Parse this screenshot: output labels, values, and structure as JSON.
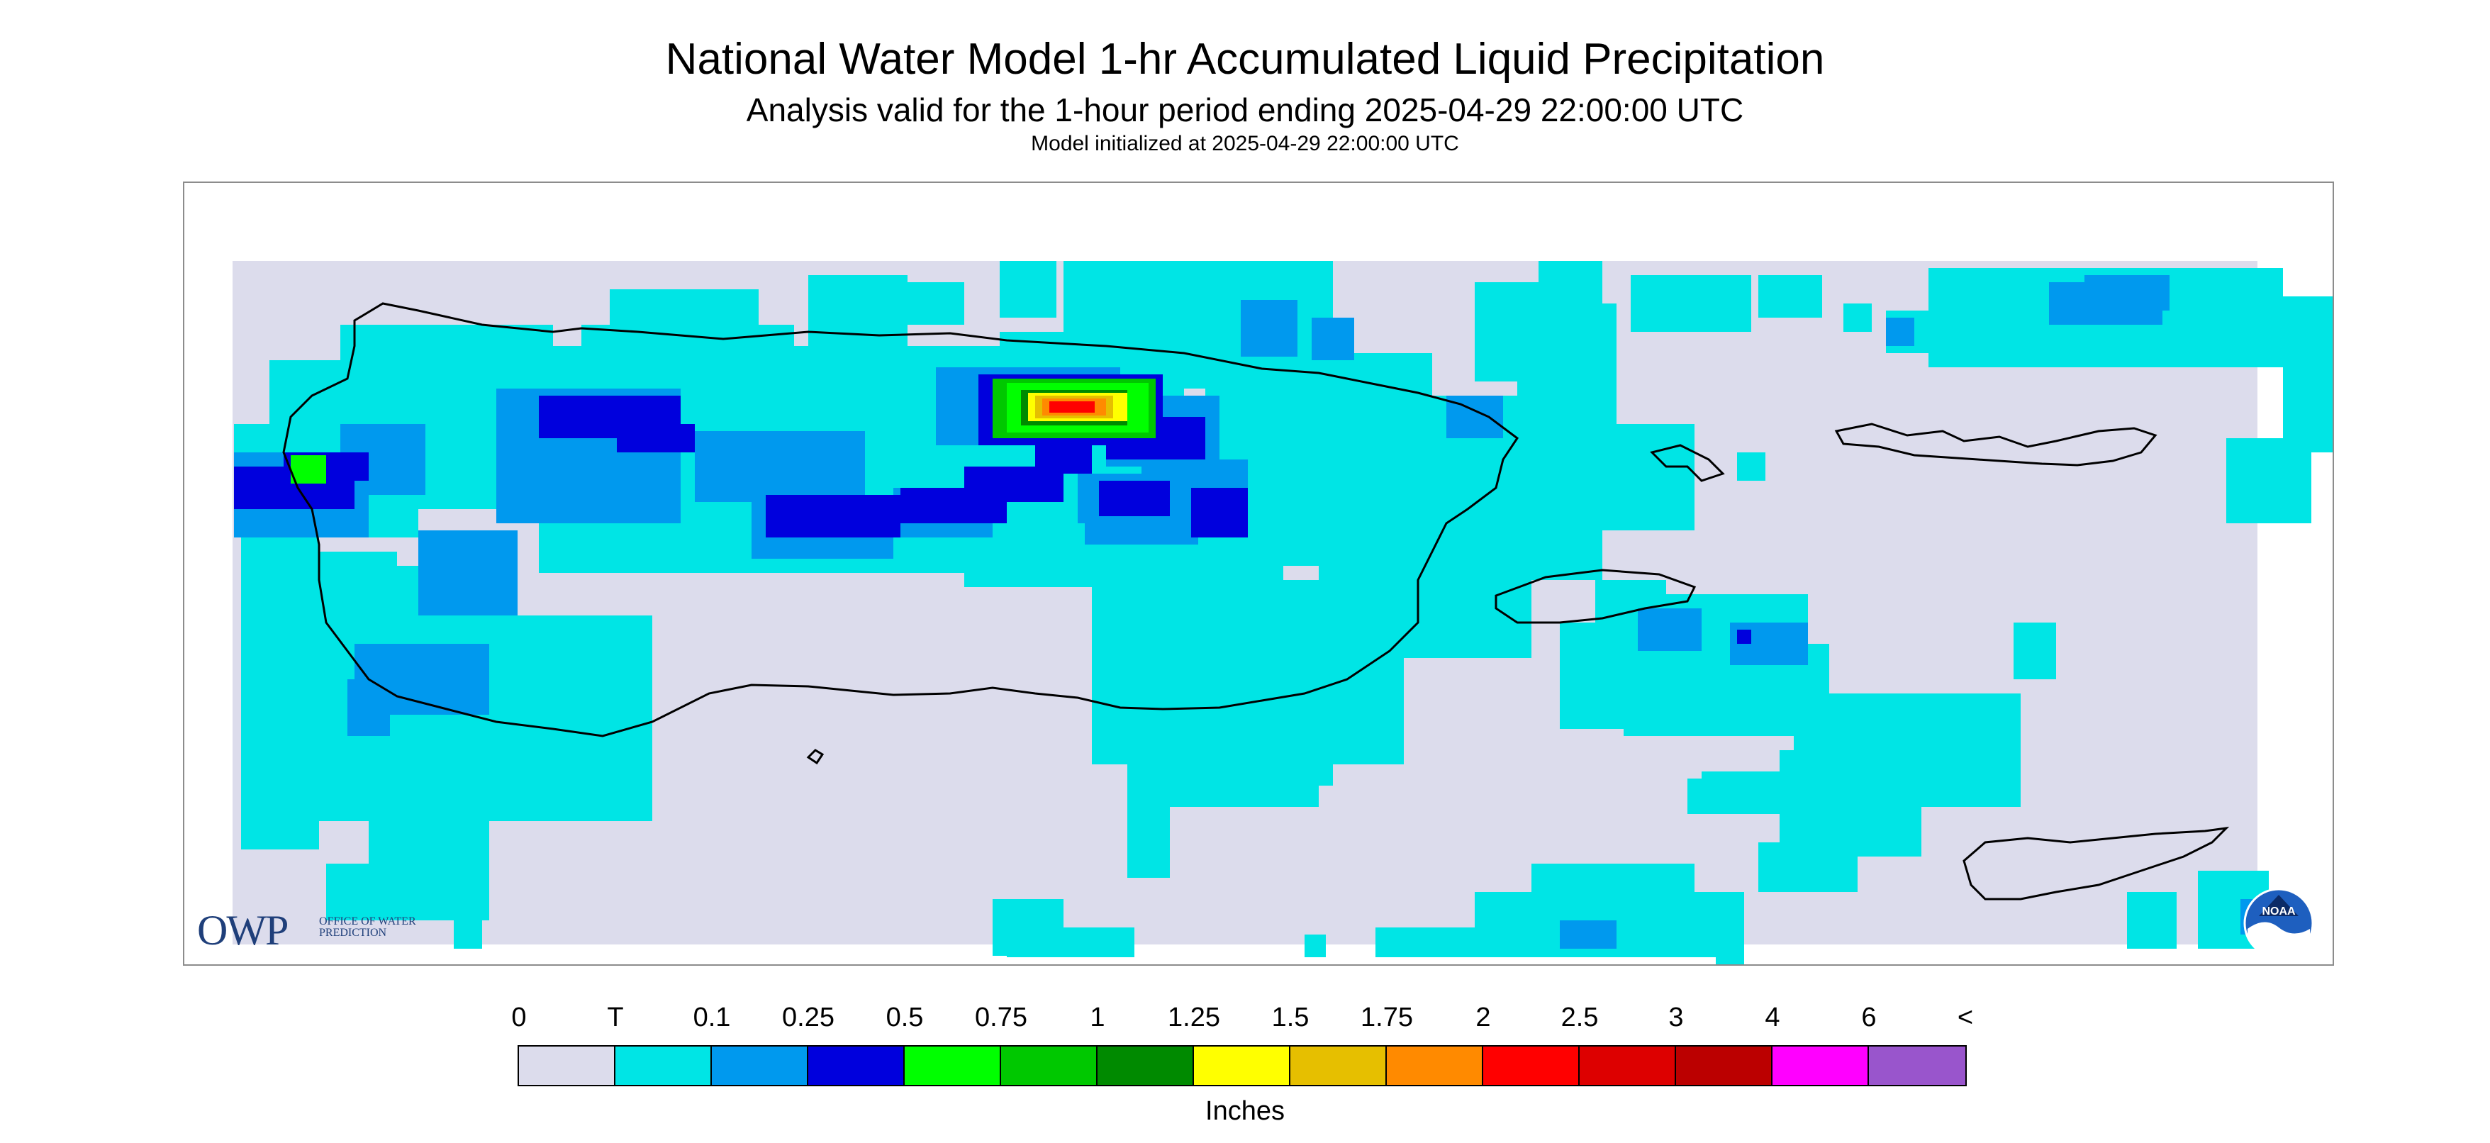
{
  "title": "National Water Model 1-hr Accumulated Liquid Precipitation",
  "subtitle": "Analysis valid for the 1-hour period ending 2025-04-29 22:00:00 UTC",
  "init_line": "Model initialized at 2025-04-29 22:00:00 UTC",
  "owp": {
    "letters": "OWP",
    "sub": "Office of Water Prediction"
  },
  "noaa": {
    "label": "NOAA"
  },
  "legend": {
    "units": "Inches",
    "tick_labels": [
      "0",
      "T",
      "0.1",
      "0.25",
      "0.5",
      "0.75",
      "1",
      "1.25",
      "1.5",
      "1.75",
      "2",
      "2.5",
      "3",
      "4",
      "6",
      "<"
    ],
    "colors": [
      "#dcdcec",
      "#00e5e5",
      "#0099ee",
      "#0000dd",
      "#00ff00",
      "#00c800",
      "#008a00",
      "#ffff00",
      "#e6bf00",
      "#ff8a00",
      "#ff0000",
      "#dd0000",
      "#bb0000",
      "#ff00ff",
      "#9955cc"
    ]
  },
  "map": {
    "background_color": "#dcdcec",
    "coastline_color": "#000000",
    "region": "Puerto Rico and U.S. Virgin Islands"
  }
}
